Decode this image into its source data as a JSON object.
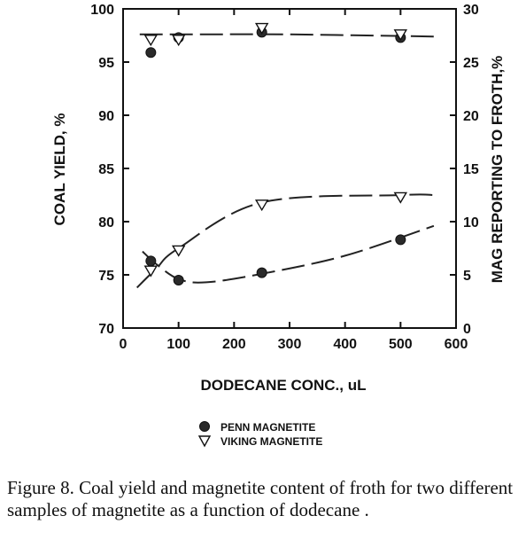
{
  "chart_data": {
    "type": "scatter",
    "xlabel": "DODECANE CONC., uL",
    "ylabel_left": "COAL YIELD, %",
    "ylabel_right": "MAG REPORTING TO FROTH,%",
    "xlim": [
      0,
      600
    ],
    "ylim_left": [
      70,
      100
    ],
    "ylim_right": [
      0,
      30
    ],
    "x_ticks": [
      "0",
      "100",
      "200",
      "300",
      "400",
      "500",
      "600"
    ],
    "y_left_ticks": [
      "70",
      "75",
      "80",
      "85",
      "90",
      "95",
      "100"
    ],
    "y_right_ticks": [
      "0",
      "5",
      "10",
      "15",
      "20",
      "25",
      "30"
    ],
    "grid": false,
    "legend_position": "bottom",
    "series": [
      {
        "name": "PENN MAGNETITE",
        "marker": "filled-circle",
        "coal_yield": {
          "x": [
            50,
            100,
            250,
            500
          ],
          "y": [
            95.9,
            97.3,
            97.8,
            97.3
          ]
        },
        "mag_to_froth": {
          "x": [
            50,
            100,
            250,
            500
          ],
          "y": [
            6.3,
            4.5,
            5.2,
            8.3
          ]
        }
      },
      {
        "name": "VIKING MAGNETITE",
        "marker": "open-triangle-down",
        "coal_yield": {
          "x": [
            50,
            100,
            250,
            500
          ],
          "y": [
            97.1,
            97.1,
            98.2,
            97.6
          ]
        },
        "mag_to_froth": {
          "x": [
            50,
            100,
            250,
            500
          ],
          "y": [
            5.4,
            7.3,
            11.6,
            12.3
          ]
        }
      }
    ],
    "fitted_curves": [
      {
        "axis": "left",
        "x": [
          30,
          120,
          300,
          560
        ],
        "y": [
          97.6,
          97.6,
          97.6,
          97.4
        ]
      },
      {
        "axis": "right",
        "x": [
          25,
          60,
          100,
          250,
          500,
          560
        ],
        "y": [
          3.8,
          5.6,
          7.5,
          11.8,
          12.5,
          12.5
        ]
      },
      {
        "axis": "right",
        "x": [
          35,
          60,
          100,
          150,
          250,
          400,
          560
        ],
        "y": [
          7.2,
          6.0,
          4.6,
          4.3,
          5.1,
          6.8,
          9.6
        ]
      }
    ]
  },
  "caption": "Figure 8.  Coal yield and magnetite content of froth for two different samples of magnetite as a function of dodecane ."
}
